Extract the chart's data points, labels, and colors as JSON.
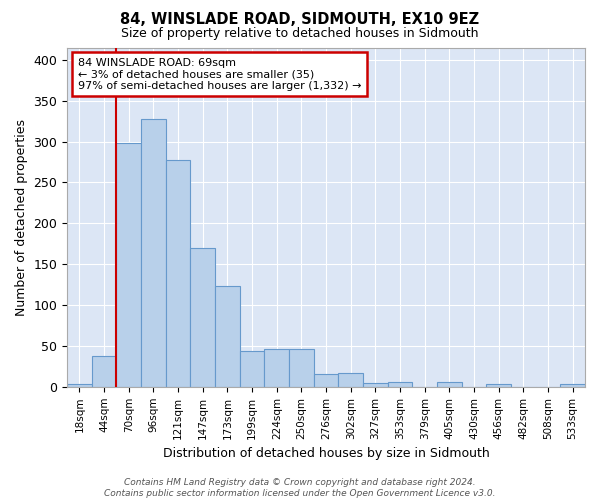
{
  "title1": "84, WINSLADE ROAD, SIDMOUTH, EX10 9EZ",
  "title2": "Size of property relative to detached houses in Sidmouth",
  "xlabel": "Distribution of detached houses by size in Sidmouth",
  "ylabel": "Number of detached properties",
  "bin_labels": [
    "18sqm",
    "44sqm",
    "70sqm",
    "96sqm",
    "121sqm",
    "147sqm",
    "173sqm",
    "199sqm",
    "224sqm",
    "250sqm",
    "276sqm",
    "302sqm",
    "327sqm",
    "353sqm",
    "379sqm",
    "405sqm",
    "430sqm",
    "456sqm",
    "482sqm",
    "508sqm",
    "533sqm"
  ],
  "bar_heights": [
    4,
    38,
    298,
    328,
    278,
    170,
    123,
    44,
    46,
    46,
    16,
    17,
    5,
    6,
    0,
    6,
    0,
    3,
    0,
    0,
    3
  ],
  "bar_color": "#b8d0ea",
  "bar_edge_color": "#6699cc",
  "bg_color": "#dce6f5",
  "grid_color": "#ffffff",
  "annotation_text": "84 WINSLADE ROAD: 69sqm\n← 3% of detached houses are smaller (35)\n97% of semi-detached houses are larger (1,332) →",
  "annotation_box_color": "#ffffff",
  "annotation_box_edge_color": "#cc0000",
  "vline_color": "#cc0000",
  "vline_bar_index": 2,
  "ylim": [
    0,
    415
  ],
  "yticks": [
    0,
    50,
    100,
    150,
    200,
    250,
    300,
    350,
    400
  ],
  "footnote": "Contains HM Land Registry data © Crown copyright and database right 2024.\nContains public sector information licensed under the Open Government Licence v3.0."
}
